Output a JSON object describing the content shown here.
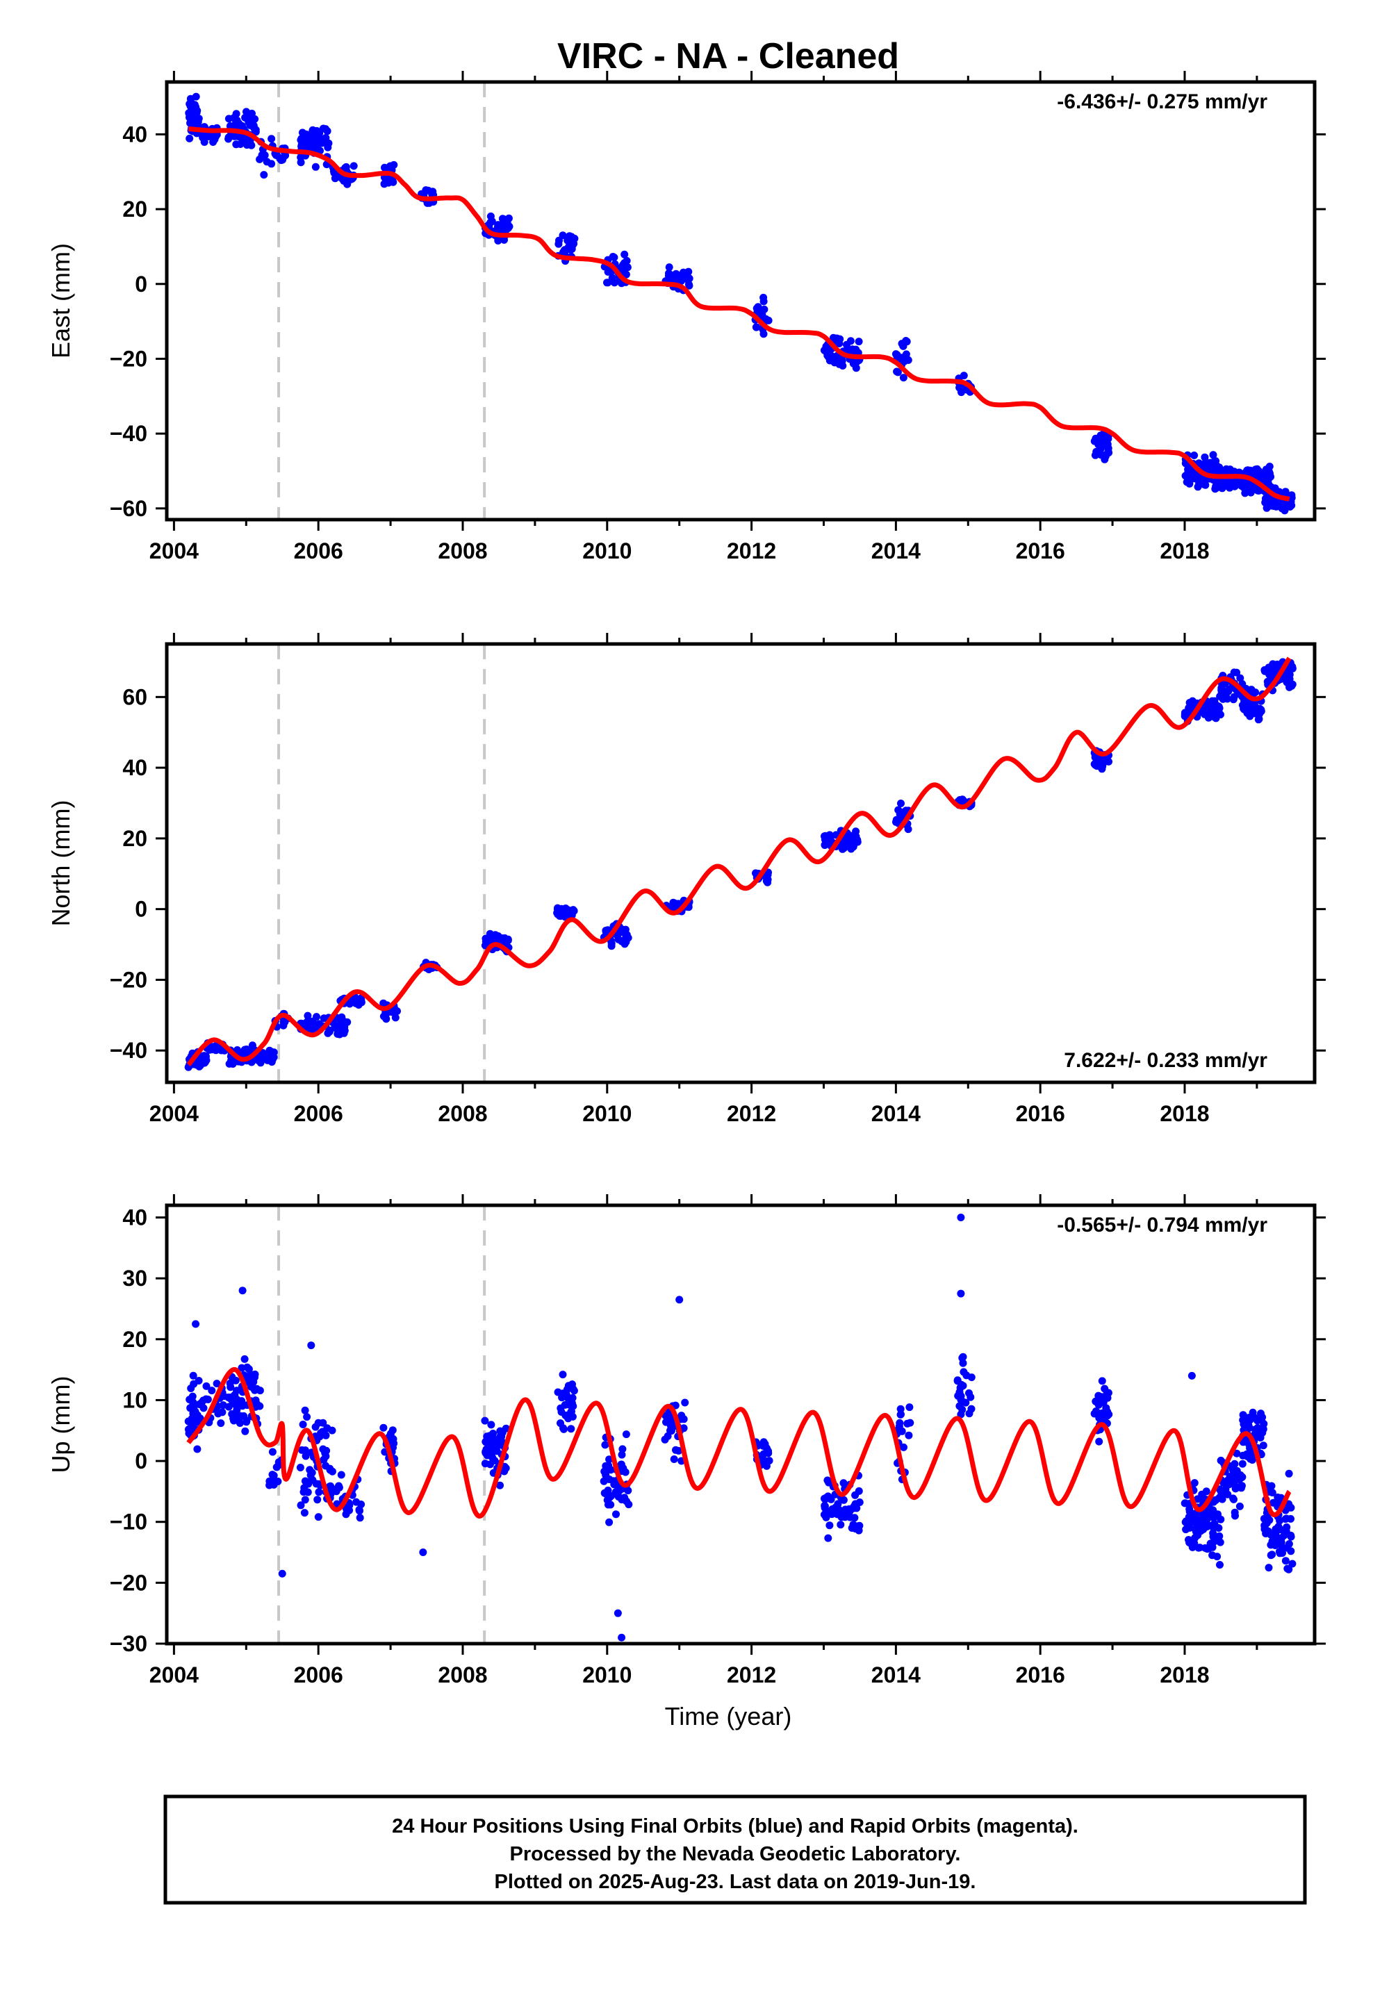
{
  "title": "VIRC  - NA - Cleaned",
  "xlabel": "Time (year)",
  "footer": [
    "24 Hour Positions Using Final Orbits (blue) and Rapid Orbits (magenta).",
    "Processed by the Nevada Geodetic Laboratory.",
    "Plotted on 2025-Aug-23. Last data on 2019-Jun-19."
  ],
  "colors": {
    "data": "#0000ff",
    "model": "#ff0000",
    "break": "#c8c8c8"
  },
  "chart_data": [
    {
      "type": "scatter",
      "ylabel": "East (mm)",
      "rate": "-6.436+/- 0.275 mm/yr",
      "xlim": [
        2003.9,
        2019.8
      ],
      "ylim": [
        -63,
        54
      ],
      "xticks": [
        "2004",
        "2006",
        "2008",
        "2010",
        "2012",
        "2014",
        "2016",
        "2018"
      ],
      "yticks": [
        40,
        20,
        0,
        -20,
        -40,
        -60
      ],
      "breaks": [
        2005.45,
        2008.3
      ],
      "model_curve": [
        [
          2004.2,
          41.5
        ],
        [
          2004.5,
          41
        ],
        [
          2004.8,
          41
        ],
        [
          2005.05,
          40
        ],
        [
          2005.3,
          36.5
        ],
        [
          2005.6,
          35.5
        ],
        [
          2005.9,
          35
        ],
        [
          2006.15,
          33
        ],
        [
          2006.35,
          29.5
        ],
        [
          2006.6,
          29
        ],
        [
          2007.0,
          29.5
        ],
        [
          2007.2,
          26.5
        ],
        [
          2007.4,
          23
        ],
        [
          2007.8,
          23
        ],
        [
          2008.0,
          22.5
        ],
        [
          2008.2,
          18
        ],
        [
          2008.4,
          13.5
        ],
        [
          2008.8,
          13
        ],
        [
          2009.05,
          12
        ],
        [
          2009.3,
          7.5
        ],
        [
          2009.8,
          6.5
        ],
        [
          2010.05,
          5
        ],
        [
          2010.3,
          0.5
        ],
        [
          2010.8,
          0
        ],
        [
          2011.05,
          -1
        ],
        [
          2011.3,
          -6
        ],
        [
          2011.8,
          -6.5
        ],
        [
          2012.0,
          -8
        ],
        [
          2012.3,
          -12.5
        ],
        [
          2012.8,
          -13
        ],
        [
          2013.0,
          -14
        ],
        [
          2013.3,
          -19
        ],
        [
          2013.8,
          -19.5
        ],
        [
          2014.0,
          -21
        ],
        [
          2014.3,
          -25.5
        ],
        [
          2014.8,
          -26
        ],
        [
          2015.0,
          -27
        ],
        [
          2015.3,
          -32
        ],
        [
          2015.8,
          -32
        ],
        [
          2016.0,
          -33
        ],
        [
          2016.3,
          -38
        ],
        [
          2016.8,
          -38.5
        ],
        [
          2017.0,
          -40
        ],
        [
          2017.3,
          -44.5
        ],
        [
          2017.8,
          -45
        ],
        [
          2018.0,
          -46
        ],
        [
          2018.3,
          -51
        ],
        [
          2018.8,
          -51.5
        ],
        [
          2019.0,
          -53
        ],
        [
          2019.25,
          -56.5
        ],
        [
          2019.45,
          -57.5
        ]
      ],
      "clusters": [
        {
          "x": [
            2004.2,
            2004.35
          ],
          "y": [
            37,
            52
          ],
          "n": 55
        },
        {
          "x": [
            2004.35,
            2004.6
          ],
          "y": [
            37,
            43
          ],
          "n": 30
        },
        {
          "x": [
            2004.75,
            2005.15
          ],
          "y": [
            35,
            48
          ],
          "n": 60
        },
        {
          "x": [
            2005.15,
            2005.55
          ],
          "y": [
            28,
            40
          ],
          "n": 25
        },
        {
          "x": [
            2005.75,
            2006.15
          ],
          "y": [
            30,
            46
          ],
          "n": 55
        },
        {
          "x": [
            2006.2,
            2006.5
          ],
          "y": [
            25,
            33
          ],
          "n": 25
        },
        {
          "x": [
            2006.9,
            2007.05
          ],
          "y": [
            25,
            34
          ],
          "n": 20
        },
        {
          "x": [
            2007.4,
            2007.6
          ],
          "y": [
            20,
            27
          ],
          "n": 15
        },
        {
          "x": [
            2008.3,
            2008.65
          ],
          "y": [
            11,
            19
          ],
          "n": 55
        },
        {
          "x": [
            2009.3,
            2009.55
          ],
          "y": [
            4,
            15
          ],
          "n": 25
        },
        {
          "x": [
            2009.95,
            2010.3
          ],
          "y": [
            -1,
            9
          ],
          "n": 40
        },
        {
          "x": [
            2010.8,
            2011.15
          ],
          "y": [
            -3,
            6
          ],
          "n": 35
        },
        {
          "x": [
            2012.05,
            2012.25
          ],
          "y": [
            -17,
            -2
          ],
          "n": 20
        },
        {
          "x": [
            2013.0,
            2013.5
          ],
          "y": [
            -24,
            -13
          ],
          "n": 60
        },
        {
          "x": [
            2014.0,
            2014.2
          ],
          "y": [
            -27,
            -13
          ],
          "n": 20
        },
        {
          "x": [
            2014.85,
            2015.05
          ],
          "y": [
            -31,
            -24
          ],
          "n": 20
        },
        {
          "x": [
            2016.75,
            2016.95
          ],
          "y": [
            -49,
            -38
          ],
          "n": 30
        },
        {
          "x": [
            2018.0,
            2018.5
          ],
          "y": [
            -58,
            -44
          ],
          "n": 90
        },
        {
          "x": [
            2018.5,
            2018.8
          ],
          "y": [
            -57,
            -48
          ],
          "n": 40
        },
        {
          "x": [
            2018.8,
            2019.2
          ],
          "y": [
            -58,
            -47
          ],
          "n": 70
        },
        {
          "x": [
            2019.1,
            2019.5
          ],
          "y": [
            -62,
            -53
          ],
          "n": 60
        }
      ]
    },
    {
      "type": "scatter",
      "ylabel": "North (mm)",
      "rate": "7.622+/- 0.233 mm/yr",
      "xlim": [
        2003.9,
        2019.8
      ],
      "ylim": [
        -49,
        75
      ],
      "xticks": [
        "2004",
        "2006",
        "2008",
        "2010",
        "2012",
        "2014",
        "2016",
        "2018"
      ],
      "yticks": [
        60,
        40,
        20,
        0,
        -20,
        -40
      ],
      "breaks": [
        2005.45,
        2008.3
      ],
      "model_curve": [
        [
          2004.2,
          -44
        ],
        [
          2004.55,
          -37
        ],
        [
          2004.95,
          -42.5
        ],
        [
          2005.25,
          -38
        ],
        [
          2005.5,
          -30
        ],
        [
          2005.95,
          -35.5
        ],
        [
          2006.5,
          -23.5
        ],
        [
          2006.95,
          -28
        ],
        [
          2007.5,
          -16
        ],
        [
          2007.95,
          -21
        ],
        [
          2008.2,
          -17
        ],
        [
          2008.45,
          -10
        ],
        [
          2008.9,
          -16
        ],
        [
          2009.2,
          -12
        ],
        [
          2009.5,
          -3
        ],
        [
          2009.95,
          -9
        ],
        [
          2010.5,
          5
        ],
        [
          2010.95,
          -1
        ],
        [
          2011.5,
          12
        ],
        [
          2011.95,
          6
        ],
        [
          2012.5,
          19.5
        ],
        [
          2012.95,
          13.5
        ],
        [
          2013.5,
          27
        ],
        [
          2013.95,
          21
        ],
        [
          2014.5,
          35
        ],
        [
          2014.95,
          29
        ],
        [
          2015.5,
          42.5
        ],
        [
          2015.95,
          36.5
        ],
        [
          2016.2,
          40
        ],
        [
          2016.5,
          50
        ],
        [
          2016.9,
          44
        ],
        [
          2017.5,
          57.5
        ],
        [
          2017.95,
          51.5
        ],
        [
          2018.5,
          65
        ],
        [
          2018.95,
          59.5
        ],
        [
          2019.2,
          63
        ],
        [
          2019.45,
          71
        ]
      ],
      "clusters": [
        {
          "x": [
            2004.2,
            2004.45
          ],
          "y": [
            -46,
            -40
          ],
          "n": 40
        },
        {
          "x": [
            2004.45,
            2004.7
          ],
          "y": [
            -42,
            -36
          ],
          "n": 20
        },
        {
          "x": [
            2004.75,
            2005.4
          ],
          "y": [
            -45,
            -38
          ],
          "n": 70
        },
        {
          "x": [
            2005.4,
            2005.6
          ],
          "y": [
            -34,
            -29
          ],
          "n": 15
        },
        {
          "x": [
            2005.75,
            2006.4
          ],
          "y": [
            -37,
            -29
          ],
          "n": 60
        },
        {
          "x": [
            2006.3,
            2006.6
          ],
          "y": [
            -28,
            -23
          ],
          "n": 20
        },
        {
          "x": [
            2006.9,
            2007.1
          ],
          "y": [
            -33,
            -24
          ],
          "n": 20
        },
        {
          "x": [
            2007.45,
            2007.65
          ],
          "y": [
            -18,
            -14
          ],
          "n": 12
        },
        {
          "x": [
            2008.3,
            2008.65
          ],
          "y": [
            -13,
            -6
          ],
          "n": 50
        },
        {
          "x": [
            2009.3,
            2009.55
          ],
          "y": [
            -4,
            2
          ],
          "n": 25
        },
        {
          "x": [
            2009.95,
            2010.3
          ],
          "y": [
            -12,
            -3
          ],
          "n": 40
        },
        {
          "x": [
            2010.8,
            2011.15
          ],
          "y": [
            -2,
            4
          ],
          "n": 30
        },
        {
          "x": [
            2012.05,
            2012.25
          ],
          "y": [
            7,
            12
          ],
          "n": 20
        },
        {
          "x": [
            2013.0,
            2013.5
          ],
          "y": [
            15,
            23
          ],
          "n": 50
        },
        {
          "x": [
            2014.0,
            2014.2
          ],
          "y": [
            22,
            31
          ],
          "n": 20
        },
        {
          "x": [
            2014.85,
            2015.05
          ],
          "y": [
            27,
            33
          ],
          "n": 18
        },
        {
          "x": [
            2016.75,
            2016.95
          ],
          "y": [
            38,
            47
          ],
          "n": 30
        },
        {
          "x": [
            2018.0,
            2018.5
          ],
          "y": [
            52,
            61
          ],
          "n": 80
        },
        {
          "x": [
            2018.5,
            2018.8
          ],
          "y": [
            58,
            68
          ],
          "n": 40
        },
        {
          "x": [
            2018.8,
            2019.1
          ],
          "y": [
            51,
            64
          ],
          "n": 50
        },
        {
          "x": [
            2019.1,
            2019.5
          ],
          "y": [
            60,
            73
          ],
          "n": 60
        }
      ]
    },
    {
      "type": "scatter",
      "ylabel": "Up (mm)",
      "rate": "-0.565+/- 0.794 mm/yr",
      "xlim": [
        2003.9,
        2019.8
      ],
      "ylim": [
        -30,
        42
      ],
      "xticks": [
        "2004",
        "2006",
        "2008",
        "2010",
        "2012",
        "2014",
        "2016",
        "2018"
      ],
      "yticks": [
        40,
        30,
        20,
        10,
        0,
        -10,
        -20,
        -30
      ],
      "breaks": [
        2005.45,
        2008.3
      ],
      "model_curve": [
        [
          2004.2,
          3
        ],
        [
          2004.45,
          7
        ],
        [
          2004.85,
          15
        ],
        [
          2005.2,
          4
        ],
        [
          2005.4,
          3
        ],
        [
          2005.5,
          6
        ],
        [
          2005.55,
          -3
        ],
        [
          2005.85,
          5
        ],
        [
          2006.25,
          -8
        ],
        [
          2006.85,
          4.5
        ],
        [
          2007.25,
          -8.5
        ],
        [
          2007.85,
          4
        ],
        [
          2008.25,
          -9
        ],
        [
          2008.85,
          10
        ],
        [
          2009.25,
          -3
        ],
        [
          2009.85,
          9.5
        ],
        [
          2010.25,
          -4
        ],
        [
          2010.85,
          9
        ],
        [
          2011.25,
          -4.5
        ],
        [
          2011.85,
          8.5
        ],
        [
          2012.25,
          -5
        ],
        [
          2012.85,
          8
        ],
        [
          2013.25,
          -5.5
        ],
        [
          2013.85,
          7.5
        ],
        [
          2014.25,
          -6
        ],
        [
          2014.85,
          7
        ],
        [
          2015.25,
          -6.5
        ],
        [
          2015.85,
          6.5
        ],
        [
          2016.25,
          -7
        ],
        [
          2016.85,
          6
        ],
        [
          2017.25,
          -7.5
        ],
        [
          2017.85,
          5
        ],
        [
          2018.2,
          -8
        ],
        [
          2018.85,
          4.5
        ],
        [
          2019.2,
          -8.5
        ],
        [
          2019.45,
          -5
        ]
      ],
      "clusters": [
        {
          "x": [
            2004.2,
            2004.4
          ],
          "y": [
            1,
            16
          ],
          "n": 40
        },
        {
          "x": [
            2004.4,
            2004.7
          ],
          "y": [
            5,
            14
          ],
          "n": 20
        },
        {
          "x": [
            2004.75,
            2005.2
          ],
          "y": [
            2,
            20
          ],
          "n": 60
        },
        {
          "x": [
            2005.3,
            2005.5
          ],
          "y": [
            -8,
            5
          ],
          "n": 12
        },
        {
          "x": [
            2005.75,
            2006.2
          ],
          "y": [
            -12,
            12
          ],
          "n": 60
        },
        {
          "x": [
            2006.2,
            2006.6
          ],
          "y": [
            -13,
            0
          ],
          "n": 25
        },
        {
          "x": [
            2006.9,
            2007.1
          ],
          "y": [
            -6,
            10
          ],
          "n": 20
        },
        {
          "x": [
            2008.3,
            2008.6
          ],
          "y": [
            -6,
            8
          ],
          "n": 50
        },
        {
          "x": [
            2009.3,
            2009.55
          ],
          "y": [
            3,
            15
          ],
          "n": 30
        },
        {
          "x": [
            2009.95,
            2010.3
          ],
          "y": [
            -12,
            6
          ],
          "n": 50
        },
        {
          "x": [
            2010.8,
            2011.1
          ],
          "y": [
            -3,
            13
          ],
          "n": 35
        },
        {
          "x": [
            2012.05,
            2012.25
          ],
          "y": [
            -4,
            7
          ],
          "n": 20
        },
        {
          "x": [
            2013.0,
            2013.5
          ],
          "y": [
            -14,
            -1
          ],
          "n": 60
        },
        {
          "x": [
            2014.0,
            2014.2
          ],
          "y": [
            -6,
            14
          ],
          "n": 20
        },
        {
          "x": [
            2014.85,
            2015.05
          ],
          "y": [
            5,
            19
          ],
          "n": 25
        },
        {
          "x": [
            2016.75,
            2016.95
          ],
          "y": [
            1,
            16
          ],
          "n": 30
        },
        {
          "x": [
            2018.0,
            2018.5
          ],
          "y": [
            -20,
            0
          ],
          "n": 100
        },
        {
          "x": [
            2018.5,
            2018.8
          ],
          "y": [
            -10,
            4
          ],
          "n": 40
        },
        {
          "x": [
            2018.8,
            2019.1
          ],
          "y": [
            -3,
            11
          ],
          "n": 60
        },
        {
          "x": [
            2019.1,
            2019.5
          ],
          "y": [
            -22,
            0
          ],
          "n": 70
        }
      ],
      "outliers": [
        [
          2004.3,
          22.5
        ],
        [
          2004.95,
          28
        ],
        [
          2005.5,
          -18.5
        ],
        [
          2005.9,
          19
        ],
        [
          2007.45,
          -15
        ],
        [
          2010.15,
          -25
        ],
        [
          2010.2,
          -29
        ],
        [
          2011.0,
          26.5
        ],
        [
          2014.9,
          40
        ],
        [
          2014.9,
          27.5
        ],
        [
          2018.1,
          14
        ]
      ]
    }
  ]
}
